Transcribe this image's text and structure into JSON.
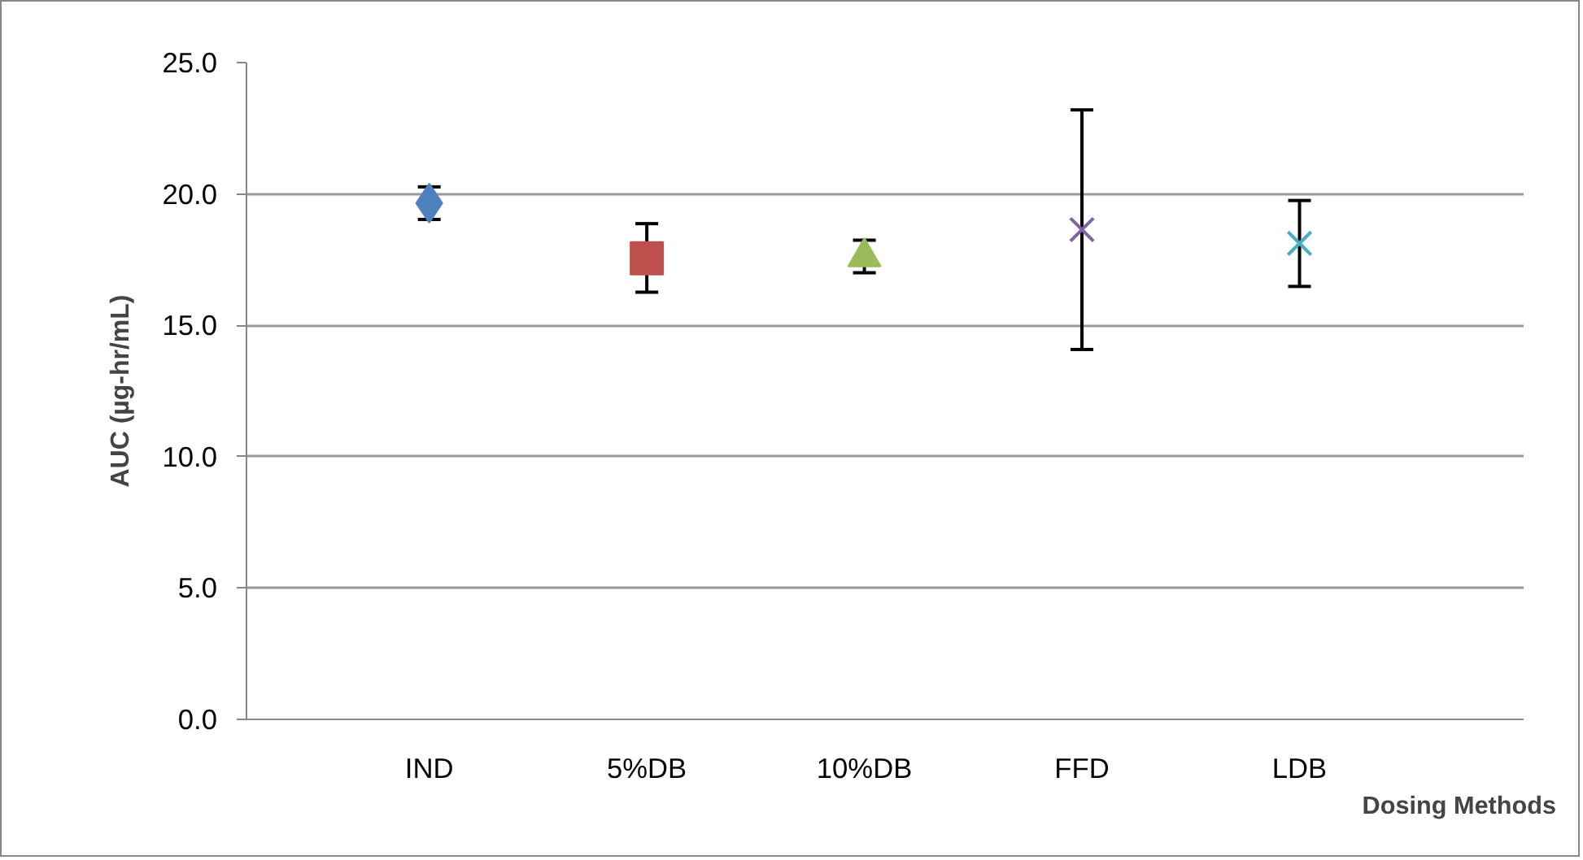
{
  "chart_data": {
    "type": "scatter",
    "xlabel": "Dosing Methods",
    "ylabel": "AUC (µg-hr/mL)",
    "categories": [
      "IND",
      "5%DB",
      "10%DB",
      "FFD",
      "LDB"
    ],
    "series": [
      {
        "color": "#4f81bd",
        "marker": "diamond",
        "values": [
          19.65,
          null,
          null,
          null,
          null
        ],
        "errors": [
          [
            19.03,
            20.27
          ],
          null,
          null,
          null,
          null
        ]
      },
      {
        "color": "#c0504d",
        "marker": "square",
        "values": [
          null,
          17.55,
          null,
          null,
          null
        ],
        "errors": [
          null,
          [
            16.26,
            18.87
          ],
          null,
          null,
          null
        ]
      },
      {
        "color": "#9bbb59",
        "marker": "triangle",
        "values": [
          null,
          null,
          17.6,
          null,
          null
        ],
        "errors": [
          null,
          null,
          [
            17.0,
            18.24
          ],
          null,
          null
        ]
      },
      {
        "color": "#8064a2",
        "marker": "cross",
        "values": [
          null,
          null,
          null,
          18.64,
          null
        ],
        "errors": [
          null,
          null,
          null,
          [
            14.08,
            23.2
          ],
          null
        ]
      },
      {
        "color": "#4bacc6",
        "marker": "cross",
        "values": [
          null,
          null,
          null,
          null,
          18.12
        ],
        "errors": [
          null,
          null,
          null,
          null,
          [
            16.48,
            19.75
          ]
        ]
      }
    ],
    "ylim": [
      0,
      25
    ],
    "yticks": [
      {
        "value": 0,
        "label": "0.0"
      },
      {
        "value": 5,
        "label": "5.0"
      },
      {
        "value": 10,
        "label": "10.0"
      },
      {
        "value": 15,
        "label": "15.0"
      },
      {
        "value": 20,
        "label": "20.0"
      },
      {
        "value": 25,
        "label": "25.0"
      }
    ],
    "grid": "y"
  }
}
